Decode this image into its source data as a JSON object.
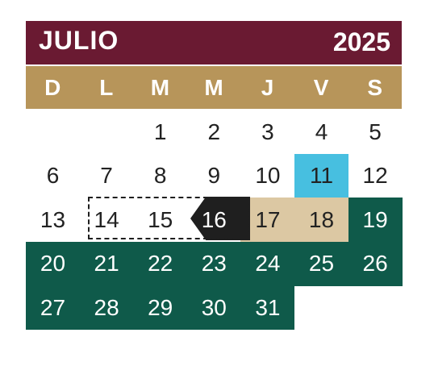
{
  "header": {
    "month": "JULIO",
    "year": "2025"
  },
  "weekdays": [
    "D",
    "L",
    "M",
    "M",
    "J",
    "V",
    "S"
  ],
  "colors": {
    "header": "#6a1a32",
    "weekday_bar": "#b7955a",
    "highlight_green": "#0f5a4a",
    "highlight_tan": "#dcc8a3",
    "highlight_blue": "#47bfe0",
    "marker_black": "#1f1f1f"
  },
  "days": [
    {
      "d": "1",
      "row": 0,
      "col": 2,
      "style": "plain"
    },
    {
      "d": "2",
      "row": 0,
      "col": 3,
      "style": "plain"
    },
    {
      "d": "3",
      "row": 0,
      "col": 4,
      "style": "plain"
    },
    {
      "d": "4",
      "row": 0,
      "col": 5,
      "style": "plain"
    },
    {
      "d": "5",
      "row": 0,
      "col": 6,
      "style": "plain"
    },
    {
      "d": "6",
      "row": 1,
      "col": 0,
      "style": "plain"
    },
    {
      "d": "7",
      "row": 1,
      "col": 1,
      "style": "plain"
    },
    {
      "d": "8",
      "row": 1,
      "col": 2,
      "style": "plain"
    },
    {
      "d": "9",
      "row": 1,
      "col": 3,
      "style": "plain"
    },
    {
      "d": "10",
      "row": 1,
      "col": 4,
      "style": "plain"
    },
    {
      "d": "11",
      "row": 1,
      "col": 5,
      "style": "blue"
    },
    {
      "d": "12",
      "row": 1,
      "col": 6,
      "style": "plain"
    },
    {
      "d": "13",
      "row": 2,
      "col": 0,
      "style": "plain"
    },
    {
      "d": "14",
      "row": 2,
      "col": 1,
      "style": "plain"
    },
    {
      "d": "15",
      "row": 2,
      "col": 2,
      "style": "plain"
    },
    {
      "d": "16",
      "row": 2,
      "col": 3,
      "style": "black"
    },
    {
      "d": "17",
      "row": 2,
      "col": 4,
      "style": "tan"
    },
    {
      "d": "18",
      "row": 2,
      "col": 5,
      "style": "tan"
    },
    {
      "d": "19",
      "row": 2,
      "col": 6,
      "style": "green"
    },
    {
      "d": "20",
      "row": 3,
      "col": 0,
      "style": "green"
    },
    {
      "d": "21",
      "row": 3,
      "col": 1,
      "style": "green"
    },
    {
      "d": "22",
      "row": 3,
      "col": 2,
      "style": "green"
    },
    {
      "d": "23",
      "row": 3,
      "col": 3,
      "style": "green"
    },
    {
      "d": "24",
      "row": 3,
      "col": 4,
      "style": "green"
    },
    {
      "d": "25",
      "row": 3,
      "col": 5,
      "style": "green"
    },
    {
      "d": "26",
      "row": 3,
      "col": 6,
      "style": "green"
    },
    {
      "d": "27",
      "row": 4,
      "col": 0,
      "style": "green"
    },
    {
      "d": "28",
      "row": 4,
      "col": 1,
      "style": "green"
    },
    {
      "d": "29",
      "row": 4,
      "col": 2,
      "style": "green"
    },
    {
      "d": "30",
      "row": 4,
      "col": 3,
      "style": "green"
    },
    {
      "d": "31",
      "row": 4,
      "col": 4,
      "style": "green"
    }
  ]
}
